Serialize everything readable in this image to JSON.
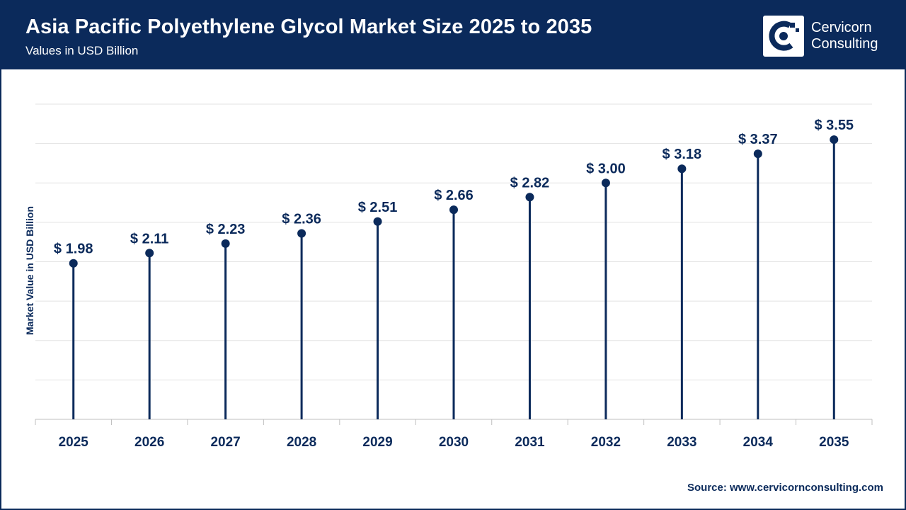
{
  "header": {
    "title": "Asia Pacific Polyethylene Glycol Market Size 2025 to 2035",
    "subtitle": "Values in USD Billion"
  },
  "logo": {
    "line1": "Cervicorn",
    "line2": "Consulting",
    "icon": "cervicorn-c-logo-icon"
  },
  "source_text": "Source: www.cervicornconsulting.com",
  "colors": {
    "navy": "#0b2a5b",
    "grid": "#e3e3e3"
  },
  "chart_data": {
    "type": "lollipop",
    "categories": [
      "2025",
      "2026",
      "2027",
      "2028",
      "2029",
      "2030",
      "2031",
      "2032",
      "2033",
      "2034",
      "2035"
    ],
    "values": [
      1.98,
      2.11,
      2.23,
      2.36,
      2.51,
      2.66,
      2.82,
      3.0,
      3.18,
      3.37,
      3.55
    ],
    "data_labels": [
      "$ 1.98",
      "$ 2.11",
      "$ 2.23",
      "$ 2.36",
      "$ 2.51",
      "$ 2.66",
      "$ 2.82",
      "$ 3.00",
      "$ 3.18",
      "$ 3.37",
      "$ 3.55"
    ],
    "ylabel": "Market Value in USD Billion",
    "xlabel": "",
    "ylim": [
      0,
      4.0
    ],
    "grid": true,
    "legend": "none"
  }
}
